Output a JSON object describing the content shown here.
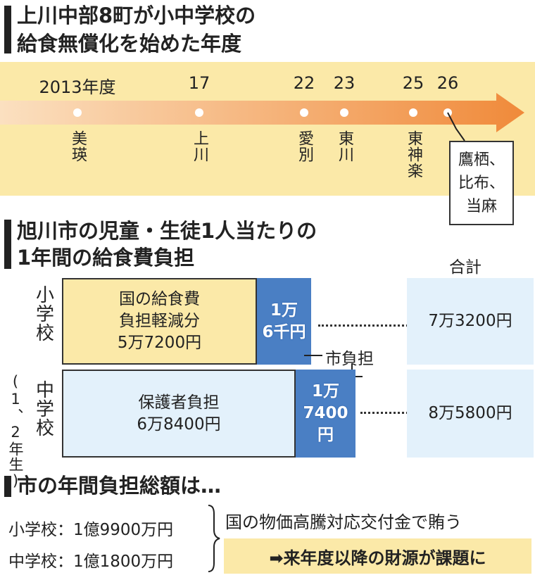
{
  "timeline_section": {
    "title": [
      "上川中部8町が小中学校の",
      "給食無償化を始めた年度"
    ],
    "events": [
      {
        "year": "2013年度",
        "town": "美瑛"
      },
      {
        "year": "17",
        "town": "上川"
      },
      {
        "year": "22",
        "town": "愛別"
      },
      {
        "year": "23",
        "town": "東川"
      },
      {
        "year": "25",
        "town": "東神楽"
      },
      {
        "year": "26",
        "town": [
          "鷹栖、",
          "比布、",
          "当麻"
        ]
      }
    ]
  },
  "cost_section": {
    "title": [
      "旭川市の児童・生徒1人当たりの",
      "1年間の給食費負担"
    ],
    "total_header": "合計",
    "city_share_label": "市負担",
    "rows": [
      {
        "label": "小学校",
        "main": [
          "国の給食費",
          "負担軽減分",
          "5万7200円"
        ],
        "city": [
          "1万",
          "6千円"
        ],
        "total": "7万3200円"
      },
      {
        "label": "中学校",
        "note": "(1、2年生)",
        "main": [
          "保護者負担",
          "6万8400円"
        ],
        "city": [
          "1万",
          "7400円"
        ],
        "total": "8万5800円"
      }
    ]
  },
  "annual_section": {
    "title": "市の年間負担総額は…",
    "lines": [
      "小学校：1億9900万円",
      "中学校：1億1800万円"
    ],
    "source": "国の物価高騰対応交付金で賄う",
    "issue": "➡来年度以降の財源が課題に"
  }
}
